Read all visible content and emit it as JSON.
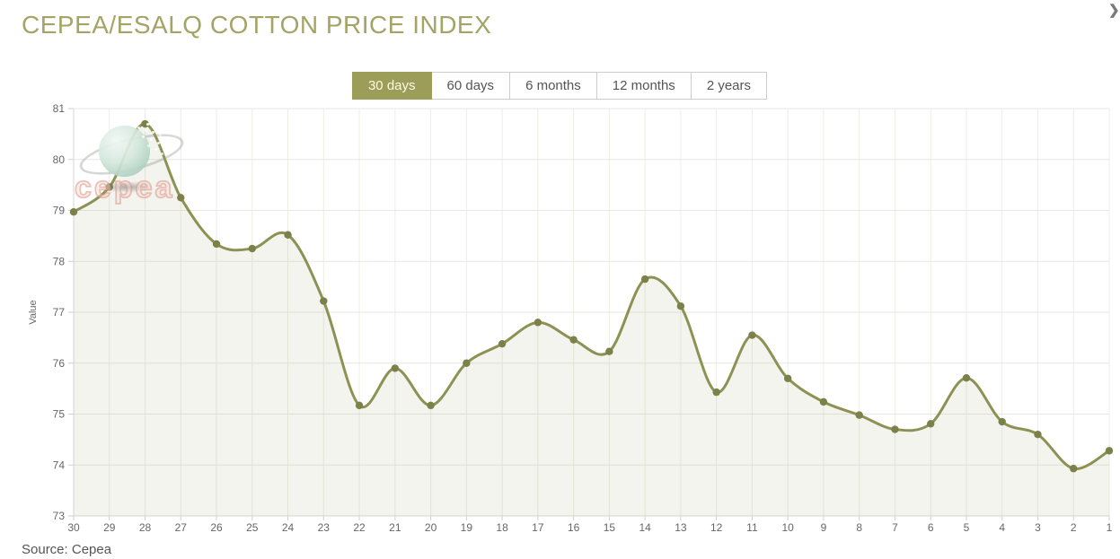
{
  "header": {
    "title": "CEPEA/ESALQ COTTON PRICE INDEX"
  },
  "nav": {
    "forward_icon": "❯"
  },
  "tabs": [
    {
      "label": "30 days",
      "selected": true
    },
    {
      "label": "60 days",
      "selected": false
    },
    {
      "label": "6 months",
      "selected": false
    },
    {
      "label": "12 months",
      "selected": false
    },
    {
      "label": "2 years",
      "selected": false
    }
  ],
  "chart_data": {
    "type": "area",
    "title": "",
    "xlabel": "",
    "ylabel": "Value",
    "categories": [
      30,
      29,
      28,
      27,
      26,
      25,
      24,
      23,
      22,
      21,
      20,
      19,
      18,
      17,
      16,
      15,
      14,
      13,
      12,
      11,
      10,
      9,
      8,
      7,
      6,
      5,
      4,
      3,
      2,
      1
    ],
    "values": [
      78.97,
      79.46,
      80.7,
      79.25,
      78.34,
      78.25,
      78.52,
      77.22,
      75.17,
      75.9,
      75.17,
      76.0,
      76.38,
      76.8,
      76.46,
      76.23,
      77.65,
      77.12,
      75.43,
      76.55,
      75.7,
      75.24,
      74.98,
      74.7,
      74.81,
      75.71,
      74.85,
      74.6,
      73.93,
      74.28
    ],
    "ylim": [
      73,
      81
    ],
    "ytick_step": 1,
    "grid": true,
    "legend": false,
    "line_color": "#8d9254",
    "marker_color": "#7b8148",
    "fill_color": "rgba(141,146,84,0.10)"
  },
  "watermark": {
    "text": "cepea"
  },
  "footer": {
    "source": "Source: Cepea"
  },
  "colors": {
    "accent": "#9b9d58",
    "title": "#a3a465",
    "tab_text": "#555555",
    "tab_border": "#cccccc",
    "selected_tab_text": "#fffbe6",
    "grid_line": "#e7e9e0",
    "axis_line": "#d7d7d7"
  }
}
